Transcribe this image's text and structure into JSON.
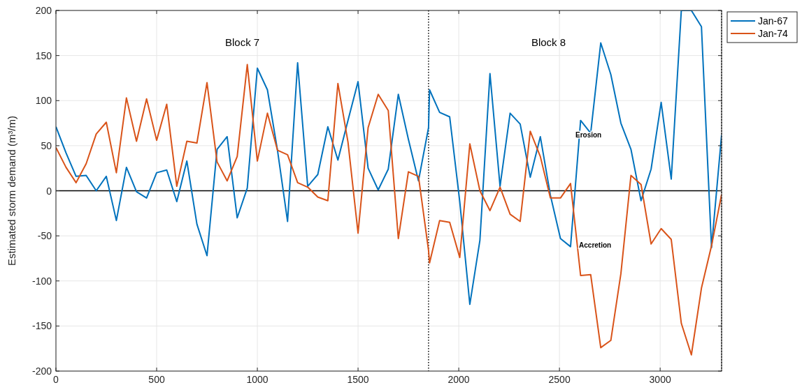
{
  "chart_data": {
    "type": "line",
    "ylabel": "Estimated storm demand (m³/m)",
    "xlim": [
      0,
      3305
    ],
    "xticks": [
      0,
      500,
      1000,
      1500,
      2000,
      2500,
      3000
    ],
    "ylim": [
      -200,
      200
    ],
    "yticks": [
      -200,
      -150,
      -100,
      -50,
      0,
      50,
      100,
      150,
      200
    ],
    "grid": true,
    "legend": "top right",
    "line_style": "solid",
    "marker": "none",
    "x": [
      0,
      50,
      100,
      150,
      200,
      250,
      300,
      350,
      400,
      450,
      500,
      550,
      600,
      650,
      700,
      750,
      800,
      850,
      900,
      950,
      1000,
      1050,
      1100,
      1150,
      1200,
      1250,
      1300,
      1350,
      1400,
      1450,
      1500,
      1550,
      1600,
      1650,
      1700,
      1750,
      1800,
      1850,
      1855,
      1905,
      1955,
      2005,
      2055,
      2105,
      2155,
      2205,
      2255,
      2305,
      2355,
      2405,
      2455,
      2505,
      2555,
      2605,
      2655,
      2705,
      2755,
      2805,
      2855,
      2905,
      2955,
      3005,
      3055,
      3105,
      3155,
      3205,
      3255,
      3305
    ],
    "series": [
      {
        "name": "Jan-67",
        "color": "#0072bd",
        "values": [
          71,
          42,
          16,
          17,
          0,
          16,
          -33,
          26,
          -1,
          -8,
          20,
          23,
          -12,
          33,
          -37,
          -72,
          46,
          60,
          -30,
          3,
          136,
          112,
          45,
          -34,
          142,
          5,
          18,
          71,
          34,
          78,
          121,
          25,
          1,
          24,
          107,
          57,
          11,
          70,
          112,
          87,
          82,
          -12,
          -126,
          -55,
          130,
          5,
          86,
          74,
          15,
          60,
          -5,
          -53,
          -62,
          78,
          64,
          164,
          129,
          75,
          46,
          -11,
          24,
          98,
          13,
          200,
          200,
          182,
          -63,
          62
        ]
      },
      {
        "name": "Jan-74",
        "color": "#d95319",
        "values": [
          48,
          26,
          9,
          30,
          63,
          76,
          20,
          103,
          55,
          102,
          56,
          96,
          5,
          55,
          53,
          120,
          32,
          11,
          38,
          140,
          33,
          86,
          45,
          40,
          9,
          4,
          -7,
          -11,
          119,
          54,
          -47,
          70,
          107,
          89,
          -53,
          21,
          16,
          -66,
          -80,
          -33,
          -35,
          -74,
          52,
          0,
          -22,
          4,
          -26,
          -34,
          66,
          38,
          -8,
          -8,
          8,
          -94,
          -93,
          -174,
          -166,
          -92,
          17,
          7,
          -59,
          -42,
          -54,
          -147,
          -182,
          -108,
          -61,
          -4
        ]
      }
    ],
    "ref_lines": [
      {
        "axis": "y",
        "value": 0,
        "color": "#000000",
        "line_style": "solid"
      },
      {
        "axis": "x",
        "value": 1850,
        "color": "#000000",
        "line_style": "dotted"
      },
      {
        "axis": "x",
        "value": 3305,
        "color": "#000000",
        "line_style": "dotted"
      }
    ],
    "annotations": [
      "Block 7",
      "Block 8",
      "Erosion",
      "Accretion"
    ]
  }
}
